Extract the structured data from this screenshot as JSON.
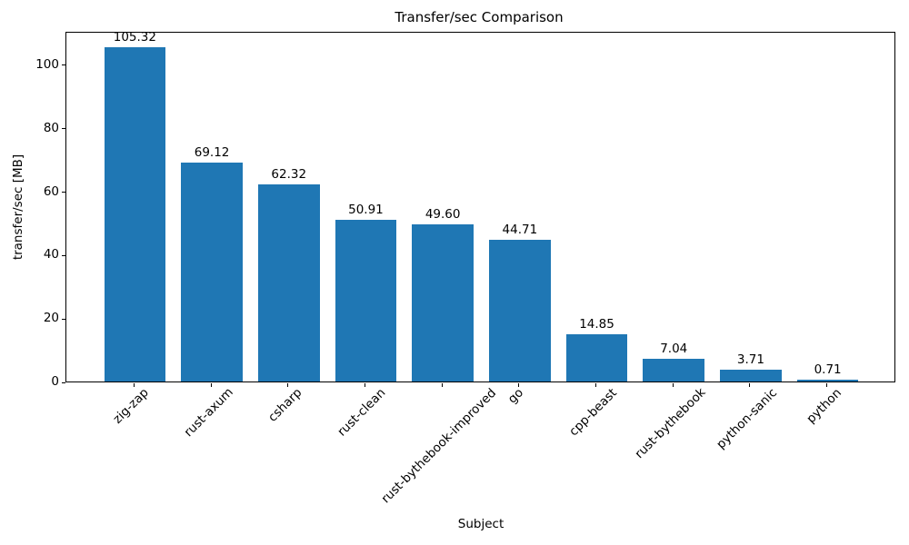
{
  "chart_data": {
    "type": "bar",
    "title": "Transfer/sec Comparison",
    "xlabel": "Subject",
    "ylabel": "transfer/sec [MB]",
    "categories": [
      "zig-zap",
      "rust-axum",
      "csharp",
      "rust-clean",
      "rust-bythebook-improved",
      "go",
      "cpp-beast",
      "rust-bythebook",
      "python-sanic",
      "python"
    ],
    "values": [
      105.32,
      69.12,
      62.32,
      50.91,
      49.6,
      44.71,
      14.85,
      7.04,
      3.71,
      0.71
    ],
    "value_labels": [
      "105.32",
      "69.12",
      "62.32",
      "50.91",
      "49.60",
      "44.71",
      "14.85",
      "7.04",
      "3.71",
      "0.71"
    ],
    "y_ticks": [
      0,
      20,
      40,
      60,
      80,
      100
    ],
    "ylim": [
      0,
      110.6
    ],
    "bar_color": "#1f77b4",
    "grid": false,
    "legend_position": "none"
  }
}
